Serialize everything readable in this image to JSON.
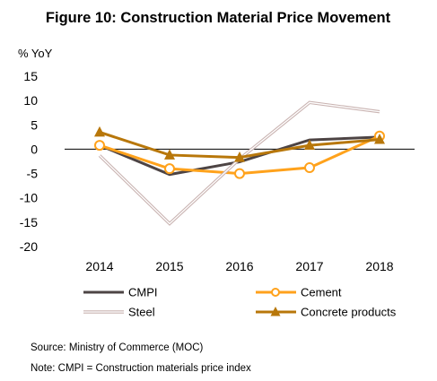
{
  "chart_data": {
    "type": "line",
    "title": "Figure 10: Construction Material Price Movement",
    "ylabel": "% YoY",
    "xlabel": "",
    "categories": [
      "2014",
      "2015",
      "2016",
      "2017",
      "2018"
    ],
    "ylim": [
      -20,
      15
    ],
    "yticks": [
      15,
      10,
      5,
      0,
      -5,
      -10,
      -15,
      -20
    ],
    "grid": false,
    "legend_position": "bottom",
    "series": [
      {
        "name": "CMPI",
        "values": [
          0.8,
          -5.2,
          -2.6,
          1.9,
          2.5
        ],
        "color": "#4d4444",
        "marker": "none",
        "style": "solid"
      },
      {
        "name": "Cement",
        "values": [
          0.8,
          -4.0,
          -5.0,
          -3.8,
          2.7
        ],
        "color": "#ffa21c",
        "marker": "circle",
        "style": "solid"
      },
      {
        "name": "Steel",
        "values": [
          -1.3,
          -15.3,
          -2.0,
          9.6,
          7.7
        ],
        "color": "#c9b3b1",
        "marker": "none",
        "style": "double"
      },
      {
        "name": "Concrete products",
        "values": [
          3.5,
          -1.2,
          -1.7,
          0.8,
          2.0
        ],
        "color": "#b8770a",
        "marker": "triangle",
        "style": "solid"
      }
    ]
  },
  "footnotes": {
    "source": "Source: Ministry of Commerce (MOC)",
    "note": "Note: CMPI = Construction materials price index"
  }
}
